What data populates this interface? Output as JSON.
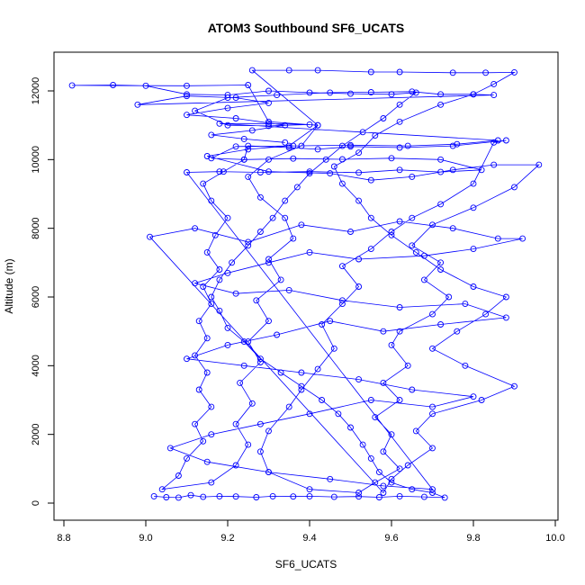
{
  "chart_data": {
    "type": "line",
    "title": "ATOM3 Southbound SF6_UCATS",
    "xlabel": "SF6_UCATS",
    "ylabel": "Altitude (m)",
    "xlim": [
      8.8,
      10.0
    ],
    "ylim": [
      0,
      12000
    ],
    "x_ticks": [
      8.8,
      9.0,
      9.2,
      9.4,
      9.6,
      9.8,
      10.0
    ],
    "x_tick_labels": [
      "8.8",
      "9.0",
      "9.2",
      "9.4",
      "9.6",
      "9.8",
      "10.0"
    ],
    "y_ticks": [
      0,
      2000,
      4000,
      6000,
      8000,
      10000,
      12000
    ],
    "y_tick_labels": [
      "0",
      "2000",
      "4000",
      "6000",
      "8000",
      "10000",
      "12000"
    ],
    "grid": false,
    "marker": "open-circle",
    "color": "#0000ff",
    "series": [
      {
        "points": [
          [
            9.02,
            200
          ],
          [
            9.05,
            170
          ],
          [
            9.08,
            160
          ],
          [
            9.11,
            230
          ],
          [
            9.14,
            180
          ],
          [
            9.18,
            200
          ],
          [
            9.22,
            190
          ],
          [
            9.27,
            170
          ],
          [
            9.31,
            200
          ],
          [
            9.36,
            190
          ],
          [
            9.4,
            200
          ],
          [
            9.46,
            180
          ],
          [
            9.52,
            190
          ],
          [
            9.57,
            170
          ],
          [
            9.62,
            200
          ],
          [
            9.68,
            180
          ],
          [
            9.73,
            160
          ],
          [
            9.7,
            300
          ],
          [
            9.65,
            400
          ],
          [
            9.6,
            600
          ],
          [
            9.57,
            900
          ],
          [
            9.55,
            1300
          ],
          [
            9.53,
            1700
          ],
          [
            9.5,
            2200
          ],
          [
            9.47,
            2600
          ],
          [
            9.43,
            3000
          ],
          [
            9.38,
            3400
          ],
          [
            9.33,
            3800
          ],
          [
            9.28,
            4200
          ],
          [
            9.24,
            4700
          ],
          [
            9.2,
            5100
          ],
          [
            9.18,
            5600
          ],
          [
            9.16,
            6000
          ],
          [
            9.18,
            6500
          ],
          [
            9.21,
            7000
          ],
          [
            9.25,
            7500
          ],
          [
            9.28,
            7900
          ],
          [
            9.31,
            8300
          ],
          [
            9.34,
            8800
          ],
          [
            9.37,
            9200
          ],
          [
            9.4,
            9600
          ],
          [
            9.44,
            10000
          ],
          [
            9.48,
            10400
          ],
          [
            9.53,
            10800
          ],
          [
            9.58,
            11200
          ],
          [
            9.62,
            11600
          ],
          [
            9.66,
            11950
          ],
          [
            9.6,
            11900
          ],
          [
            9.5,
            11920
          ],
          [
            9.4,
            11950
          ],
          [
            9.3,
            12000
          ],
          [
            9.2,
            11880
          ],
          [
            9.1,
            11900
          ],
          [
            9.0,
            12150
          ],
          [
            8.92,
            12170
          ],
          [
            8.82,
            12160
          ],
          [
            9.1,
            12150
          ],
          [
            9.25,
            12170
          ],
          [
            9.3,
            11100
          ],
          [
            9.42,
            11000
          ],
          [
            9.35,
            10400
          ],
          [
            9.25,
            10300
          ],
          [
            9.15,
            10100
          ],
          [
            9.3,
            9650
          ],
          [
            9.45,
            9600
          ],
          [
            9.55,
            9400
          ],
          [
            9.65,
            9500
          ],
          [
            9.75,
            9700
          ],
          [
            9.85,
            9850
          ],
          [
            9.96,
            9850
          ],
          [
            9.9,
            9200
          ],
          [
            9.8,
            8600
          ],
          [
            9.7,
            8100
          ],
          [
            9.65,
            7500
          ],
          [
            9.72,
            7000
          ],
          [
            9.68,
            6500
          ],
          [
            9.74,
            6000
          ],
          [
            9.7,
            5500
          ],
          [
            9.62,
            5000
          ],
          [
            9.6,
            4600
          ],
          [
            9.64,
            4000
          ],
          [
            9.58,
            3500
          ],
          [
            9.62,
            3000
          ],
          [
            9.56,
            2500
          ],
          [
            9.6,
            2000
          ],
          [
            9.58,
            1500
          ],
          [
            9.62,
            1000
          ],
          [
            9.56,
            600
          ],
          [
            9.52,
            300
          ],
          [
            9.4,
            400
          ],
          [
            9.3,
            900
          ],
          [
            9.28,
            1500
          ],
          [
            9.3,
            2100
          ],
          [
            9.35,
            2800
          ],
          [
            9.38,
            3300
          ],
          [
            9.42,
            3900
          ],
          [
            9.46,
            4500
          ],
          [
            9.43,
            5200
          ],
          [
            9.48,
            5800
          ],
          [
            9.52,
            6300
          ],
          [
            9.48,
            6900
          ],
          [
            9.55,
            7400
          ],
          [
            9.6,
            7900
          ],
          [
            9.65,
            8300
          ],
          [
            9.72,
            8700
          ],
          [
            9.8,
            9300
          ],
          [
            9.85,
            10500
          ],
          [
            9.88,
            10560
          ],
          [
            9.75,
            10400
          ],
          [
            9.62,
            10350
          ],
          [
            9.5,
            10380
          ],
          [
            9.42,
            10300
          ],
          [
            9.35,
            10350
          ],
          [
            9.25,
            10400
          ],
          [
            9.24,
            10000
          ],
          [
            9.19,
            9650
          ],
          [
            9.14,
            9300
          ],
          [
            9.16,
            8800
          ],
          [
            9.2,
            8300
          ],
          [
            9.17,
            7800
          ],
          [
            9.15,
            7300
          ],
          [
            9.18,
            6800
          ],
          [
            9.14,
            6300
          ],
          [
            9.16,
            5800
          ],
          [
            9.13,
            5300
          ],
          [
            9.15,
            4800
          ],
          [
            9.12,
            4300
          ],
          [
            9.15,
            3800
          ],
          [
            9.13,
            3300
          ],
          [
            9.16,
            2800
          ],
          [
            9.12,
            2300
          ],
          [
            9.14,
            1800
          ],
          [
            9.1,
            1300
          ],
          [
            9.08,
            800
          ],
          [
            9.04,
            400
          ],
          [
            9.16,
            600
          ],
          [
            9.22,
            1100
          ],
          [
            9.25,
            1700
          ],
          [
            9.22,
            2300
          ],
          [
            9.26,
            2900
          ],
          [
            9.23,
            3500
          ],
          [
            9.28,
            4100
          ],
          [
            9.25,
            4700
          ],
          [
            9.3,
            5300
          ],
          [
            9.27,
            5900
          ],
          [
            9.33,
            6500
          ],
          [
            9.3,
            7100
          ],
          [
            9.36,
            7700
          ],
          [
            9.34,
            8300
          ],
          [
            9.28,
            8900
          ],
          [
            9.25,
            9500
          ],
          [
            9.3,
            10000
          ],
          [
            9.38,
            10400
          ],
          [
            9.42,
            11000
          ],
          [
            9.26,
            12600
          ],
          [
            9.35,
            12600
          ],
          [
            9.42,
            12600
          ],
          [
            9.55,
            12550
          ],
          [
            9.62,
            12550
          ],
          [
            9.75,
            12530
          ],
          [
            9.83,
            12530
          ],
          [
            9.9,
            12540
          ],
          [
            9.85,
            12200
          ],
          [
            9.8,
            11900
          ],
          [
            9.72,
            11600
          ],
          [
            9.62,
            11100
          ],
          [
            9.56,
            10700
          ],
          [
            9.52,
            10200
          ],
          [
            9.46,
            9800
          ],
          [
            9.48,
            9300
          ],
          [
            9.52,
            8800
          ],
          [
            9.55,
            8300
          ],
          [
            9.6,
            7800
          ],
          [
            9.66,
            7300
          ],
          [
            9.72,
            6800
          ],
          [
            9.8,
            6300
          ],
          [
            9.88,
            6000
          ],
          [
            9.83,
            5500
          ],
          [
            9.76,
            5000
          ],
          [
            9.7,
            4500
          ],
          [
            9.78,
            4000
          ],
          [
            9.9,
            3400
          ],
          [
            9.82,
            3000
          ],
          [
            9.7,
            2600
          ],
          [
            9.66,
            2100
          ],
          [
            9.7,
            1600
          ],
          [
            9.64,
            1100
          ],
          [
            9.6,
            700
          ],
          [
            9.58,
            300
          ],
          [
            9.01,
            7750
          ],
          [
            9.12,
            8000
          ],
          [
            9.25,
            7600
          ],
          [
            9.38,
            8100
          ],
          [
            9.5,
            7900
          ],
          [
            9.62,
            8200
          ],
          [
            9.75,
            8000
          ],
          [
            9.86,
            7700
          ],
          [
            9.92,
            7700
          ],
          [
            9.8,
            7400
          ],
          [
            9.68,
            7200
          ],
          [
            9.52,
            7100
          ],
          [
            9.4,
            7300
          ],
          [
            9.3,
            7000
          ],
          [
            9.2,
            6700
          ],
          [
            9.12,
            6400
          ],
          [
            9.22,
            6100
          ],
          [
            9.35,
            6200
          ],
          [
            9.48,
            5900
          ],
          [
            9.62,
            5700
          ],
          [
            9.78,
            5800
          ],
          [
            9.88,
            5400
          ],
          [
            9.72,
            5200
          ],
          [
            9.58,
            5000
          ],
          [
            9.45,
            5300
          ],
          [
            9.32,
            4900
          ],
          [
            9.2,
            4600
          ],
          [
            9.1,
            4200
          ],
          [
            9.24,
            4000
          ],
          [
            9.38,
            3800
          ],
          [
            9.52,
            3600
          ],
          [
            9.65,
            3300
          ],
          [
            9.8,
            3100
          ],
          [
            9.7,
            2800
          ],
          [
            9.55,
            3000
          ],
          [
            9.4,
            2600
          ],
          [
            9.28,
            2300
          ],
          [
            9.16,
            2000
          ],
          [
            9.06,
            1600
          ],
          [
            9.15,
            1200
          ],
          [
            9.3,
            900
          ],
          [
            9.45,
            700
          ],
          [
            9.58,
            500
          ],
          [
            9.7,
            400
          ],
          [
            9.1,
            9630
          ],
          [
            9.18,
            9650
          ],
          [
            9.28,
            9630
          ],
          [
            9.4,
            9650
          ],
          [
            9.52,
            9620
          ],
          [
            9.62,
            9700
          ],
          [
            9.72,
            9640
          ],
          [
            9.82,
            9700
          ],
          [
            9.72,
            10000
          ],
          [
            9.6,
            10040
          ],
          [
            9.48,
            10010
          ],
          [
            9.36,
            10030
          ],
          [
            9.24,
            10000
          ],
          [
            9.16,
            10040
          ],
          [
            9.22,
            10380
          ],
          [
            9.36,
            10400
          ],
          [
            9.5,
            10420
          ],
          [
            9.64,
            10400
          ],
          [
            9.76,
            10450
          ],
          [
            9.86,
            10560
          ],
          [
            9.18,
            11050
          ],
          [
            9.3,
            11050
          ],
          [
            9.4,
            11020
          ],
          [
            9.3,
            10980
          ],
          [
            9.2,
            11000
          ],
          [
            9.12,
            11420
          ],
          [
            9.2,
            11800
          ],
          [
            9.32,
            11880
          ],
          [
            9.45,
            11950
          ],
          [
            9.55,
            11960
          ],
          [
            9.65,
            11980
          ],
          [
            9.72,
            11900
          ],
          [
            9.8,
            11900
          ],
          [
            9.85,
            11880
          ],
          [
            8.98,
            11600
          ],
          [
            9.1,
            11850
          ],
          [
            9.22,
            11800
          ],
          [
            9.3,
            11650
          ],
          [
            9.2,
            11500
          ],
          [
            9.1,
            11300
          ],
          [
            9.22,
            11200
          ],
          [
            9.34,
            11000
          ],
          [
            9.26,
            10850
          ],
          [
            9.16,
            10720
          ],
          [
            9.24,
            10600
          ],
          [
            9.34,
            10500
          ]
        ]
      }
    ]
  }
}
